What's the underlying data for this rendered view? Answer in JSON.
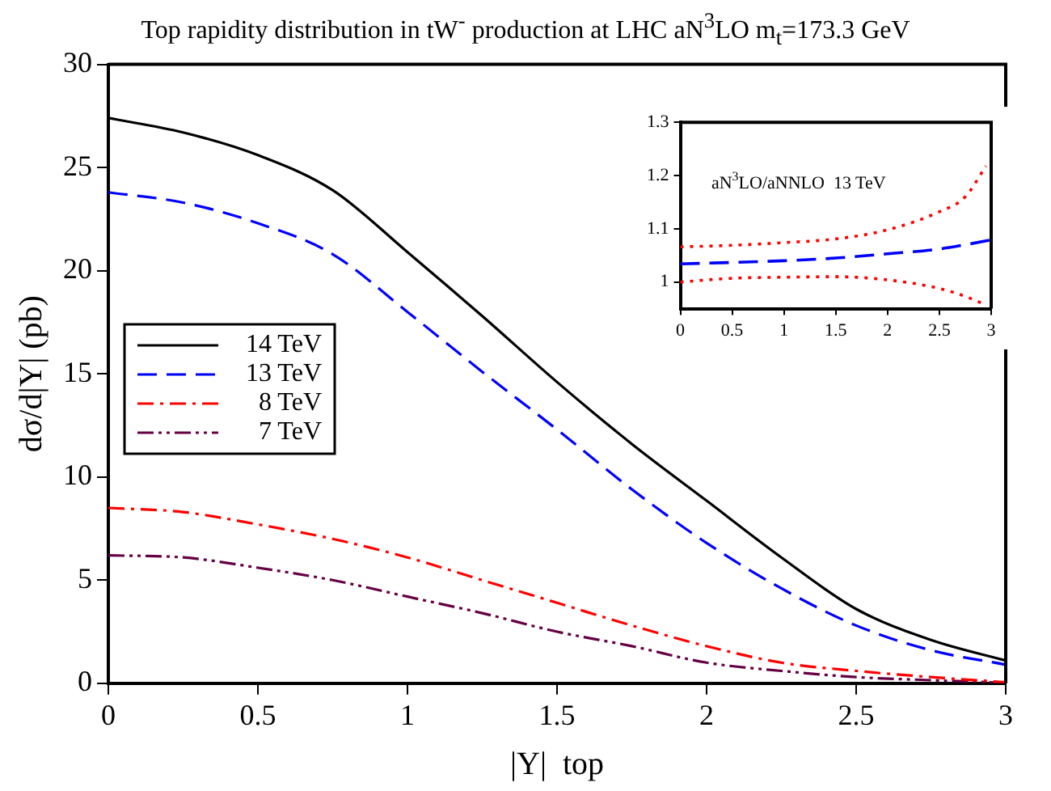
{
  "chart_data": [
    {
      "type": "line",
      "title": "Top rapidity distribution in tW$^{-}$ production at LHC   aN$^{3}$LO   m$_{t}$=173.3 GeV",
      "xlabel": "|Y|  top",
      "ylabel": "dσ/d|Y| (pb)",
      "x": [
        0,
        0.25,
        0.5,
        0.75,
        1,
        1.25,
        1.5,
        1.75,
        2,
        2.25,
        2.5,
        2.75,
        3
      ],
      "xlim": [
        0,
        3
      ],
      "xticks": [
        0,
        0.5,
        1,
        1.5,
        2,
        2.5,
        3
      ],
      "ylim": [
        0,
        30
      ],
      "yticks": [
        0,
        5,
        10,
        15,
        20,
        25,
        30
      ],
      "grid": false,
      "legend": "left",
      "marker": "none",
      "series": [
        {
          "name": "14 TeV",
          "color": "#000000",
          "line_style": "solid",
          "values": [
            27.4,
            26.7,
            25.6,
            23.9,
            20.9,
            17.8,
            14.6,
            11.6,
            8.85,
            6.1,
            3.6,
            2.1,
            1.1
          ]
        },
        {
          "name": "13 TeV",
          "color": "#0000ff",
          "line_style": "dashed",
          "values": [
            23.8,
            23.3,
            22.3,
            20.8,
            18.0,
            15.1,
            12.3,
            9.4,
            6.8,
            4.6,
            2.8,
            1.6,
            0.9
          ]
        },
        {
          "name": "8 TeV",
          "color": "#ff0000",
          "line_style": "dashdot",
          "values": [
            8.5,
            8.3,
            7.7,
            7.0,
            6.1,
            5.0,
            3.9,
            2.8,
            1.8,
            1.0,
            0.6,
            0.3,
            0.05
          ]
        },
        {
          "name": "7 TeV",
          "color": "#660044",
          "line_style": "dashdotdot",
          "values": [
            6.2,
            6.1,
            5.6,
            5.0,
            4.2,
            3.4,
            2.5,
            1.8,
            1.0,
            0.6,
            0.3,
            0.15,
            0.02
          ]
        }
      ]
    },
    {
      "type": "line",
      "annotations": [
        "aN$^{3}$LO/aNNLO  13 TeV"
      ],
      "xlim": [
        0,
        3
      ],
      "xticks": [
        0,
        0.5,
        1,
        1.5,
        2,
        2.5,
        3
      ],
      "ylim": [
        0.95,
        1.3
      ],
      "yticks": [
        1,
        1.1,
        1.2,
        1.3
      ],
      "grid": false,
      "legend": false,
      "marker": "none",
      "series": [
        {
          "color": "#0000ff",
          "line_style": "dashed",
          "x": [
            0,
            1,
            1.5,
            2,
            2.5,
            3
          ],
          "values": [
            1.034,
            1.04,
            1.045,
            1.053,
            1.062,
            1.079
          ]
        },
        {
          "color": "#ff0000",
          "line_style": "dotted",
          "x": [
            0,
            0.5,
            1,
            1.5,
            2,
            2.5,
            2.75,
            2.95
          ],
          "values": [
            1.066,
            1.069,
            1.074,
            1.081,
            1.098,
            1.132,
            1.16,
            1.218
          ]
        },
        {
          "color": "#ff0000",
          "line_style": "dotted",
          "x": [
            0,
            0.5,
            1,
            1.5,
            2,
            2.5,
            2.75,
            2.95
          ],
          "values": [
            1.0,
            1.007,
            1.009,
            1.01,
            1.004,
            0.988,
            0.973,
            0.957
          ]
        }
      ]
    }
  ]
}
